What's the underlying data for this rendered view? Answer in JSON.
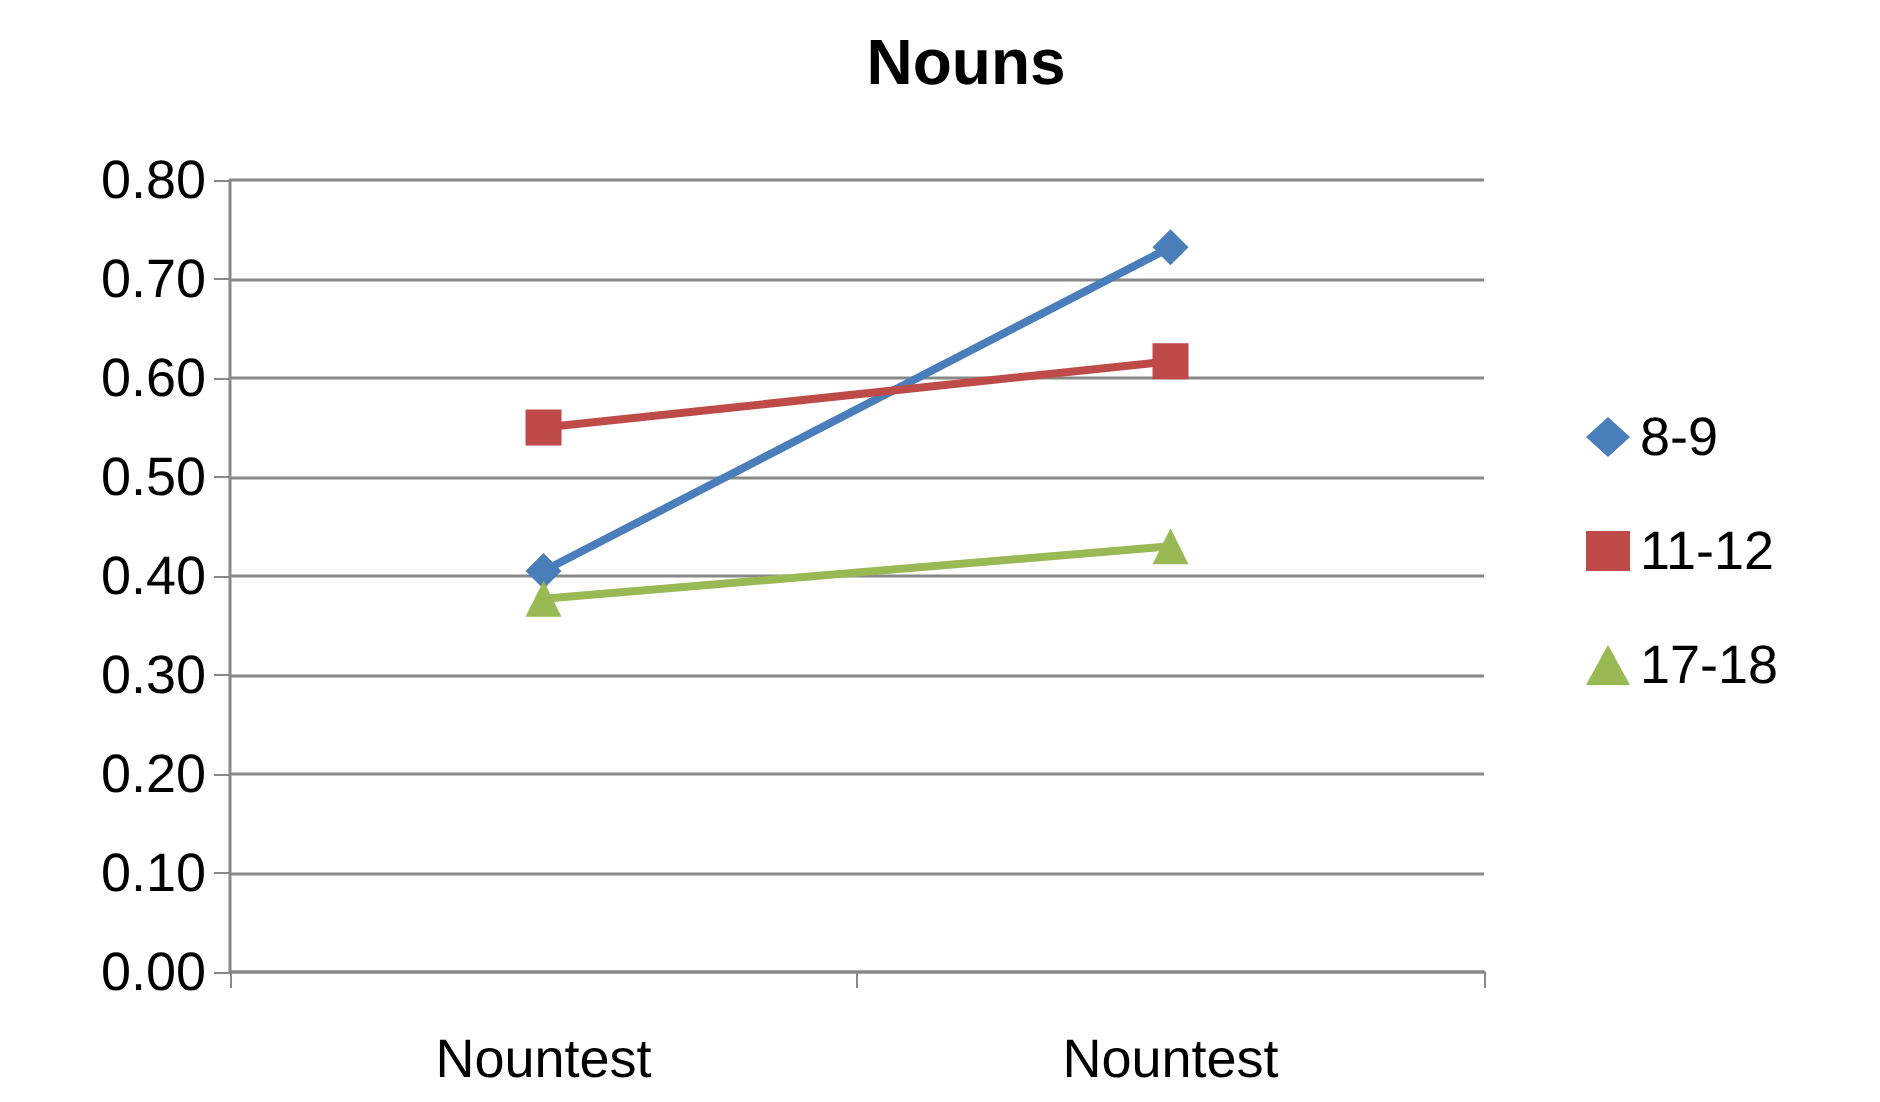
{
  "chart_data": {
    "type": "line",
    "title": "Nouns",
    "categories": [
      "Nountest",
      "Nountest"
    ],
    "series": [
      {
        "name": "8-9",
        "color": "#4a7ebb",
        "values": [
          0.405,
          0.732
        ],
        "marker": "diamond"
      },
      {
        "name": "11-12",
        "color": "#be4b48",
        "values": [
          0.55,
          0.617
        ],
        "marker": "square"
      },
      {
        "name": "17-18",
        "color": "#98b954",
        "values": [
          0.377,
          0.43
        ],
        "marker": "triangle"
      }
    ],
    "ylim": [
      0,
      0.8
    ],
    "yticks": [
      {
        "value": 0,
        "label": "0.00"
      },
      {
        "value": 0.1,
        "label": "0.10"
      },
      {
        "value": 0.2,
        "label": "0.20"
      },
      {
        "value": 0.3,
        "label": "0.30"
      },
      {
        "value": 0.4,
        "label": "0.40"
      },
      {
        "value": 0.5,
        "label": "0.50"
      },
      {
        "value": 0.6,
        "label": "0.60"
      },
      {
        "value": 0.7,
        "label": "0.70"
      },
      {
        "value": 0.8,
        "label": "0.80"
      }
    ],
    "grid": "y",
    "legend": "right",
    "line_style": "solid"
  }
}
